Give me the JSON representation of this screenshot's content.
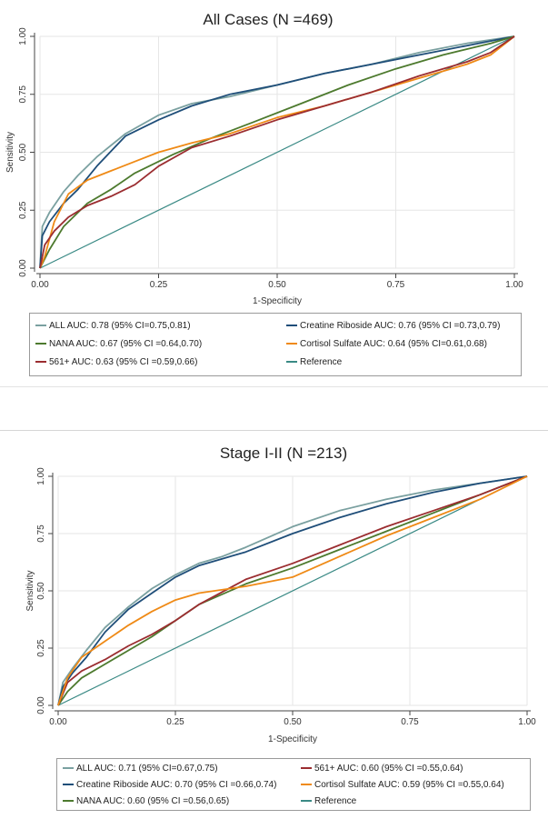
{
  "chart_data": [
    {
      "type": "line",
      "title": "All Cases (N =469)",
      "xlabel": "1-Specificity",
      "ylabel": "Sensitivity",
      "xlim": [
        0,
        1
      ],
      "ylim": [
        0,
        1
      ],
      "xticks": [
        "0.00",
        "0.25",
        "0.50",
        "0.75",
        "1.00"
      ],
      "yticks": [
        "0.00",
        "0.25",
        "0.50",
        "0.75",
        "1.00"
      ],
      "grid": true,
      "legend_position": "bottom",
      "series": [
        {
          "name": "ALL AUC: 0.78 (95% CI=0.75,0.81)",
          "color": "#7aa0a0",
          "x": [
            0,
            0.005,
            0.02,
            0.05,
            0.08,
            0.12,
            0.18,
            0.25,
            0.32,
            0.4,
            0.5,
            0.6,
            0.7,
            0.8,
            0.9,
            1.0
          ],
          "y": [
            0,
            0.18,
            0.24,
            0.33,
            0.4,
            0.48,
            0.58,
            0.66,
            0.71,
            0.74,
            0.79,
            0.84,
            0.88,
            0.93,
            0.97,
            1.0
          ]
        },
        {
          "name": "Creatine Riboside AUC: 0.76 (95% CI =0.73,0.79)",
          "color": "#1f4e79",
          "x": [
            0,
            0.005,
            0.02,
            0.05,
            0.08,
            0.12,
            0.18,
            0.25,
            0.32,
            0.4,
            0.5,
            0.6,
            0.7,
            0.8,
            0.9,
            1.0
          ],
          "y": [
            0,
            0.14,
            0.2,
            0.28,
            0.34,
            0.44,
            0.57,
            0.64,
            0.7,
            0.75,
            0.79,
            0.84,
            0.88,
            0.92,
            0.96,
            1.0
          ]
        },
        {
          "name": "NANA AUC: 0.67 (95% CI =0.64,0.70)",
          "color": "#4d7a2e",
          "x": [
            0,
            0.02,
            0.05,
            0.1,
            0.15,
            0.2,
            0.28,
            0.36,
            0.45,
            0.55,
            0.65,
            0.75,
            0.85,
            0.95,
            1.0
          ],
          "y": [
            0,
            0.08,
            0.18,
            0.28,
            0.34,
            0.41,
            0.49,
            0.56,
            0.63,
            0.71,
            0.79,
            0.86,
            0.92,
            0.97,
            1.0
          ]
        },
        {
          "name": "Cortisol Sulfate AUC: 0.64 (95% CI=0.61,0.68)",
          "color": "#ef8a16",
          "x": [
            0,
            0.01,
            0.03,
            0.06,
            0.1,
            0.15,
            0.2,
            0.25,
            0.32,
            0.4,
            0.5,
            0.6,
            0.7,
            0.8,
            0.9,
            0.95,
            1.0
          ],
          "y": [
            0,
            0.05,
            0.2,
            0.32,
            0.38,
            0.42,
            0.46,
            0.5,
            0.54,
            0.58,
            0.65,
            0.7,
            0.76,
            0.82,
            0.88,
            0.92,
            1.0
          ]
        },
        {
          "name": "561+ AUC: 0.63 (95% CI =0.59,0.66)",
          "color": "#9b2d30",
          "x": [
            0,
            0.01,
            0.03,
            0.06,
            0.1,
            0.15,
            0.2,
            0.25,
            0.32,
            0.4,
            0.5,
            0.6,
            0.7,
            0.8,
            0.9,
            0.95,
            1.0
          ],
          "y": [
            0,
            0.1,
            0.16,
            0.22,
            0.27,
            0.31,
            0.36,
            0.44,
            0.52,
            0.57,
            0.64,
            0.7,
            0.76,
            0.83,
            0.89,
            0.93,
            1.0
          ]
        },
        {
          "name": "Reference",
          "color": "#3a8a85",
          "x": [
            0,
            1
          ],
          "y": [
            0,
            1
          ]
        }
      ]
    },
    {
      "type": "line",
      "title": "Stage I-II (N =213)",
      "xlabel": "1-Specificity",
      "ylabel": "Sensitivity",
      "xlim": [
        0,
        1
      ],
      "ylim": [
        0,
        1
      ],
      "xticks": [
        "0.00",
        "0.25",
        "0.50",
        "0.75",
        "1.00"
      ],
      "yticks": [
        "0.00",
        "0.25",
        "0.50",
        "0.75",
        "1.00"
      ],
      "grid": true,
      "legend_position": "bottom",
      "series": [
        {
          "name": "ALL AUC: 0.71 (95% CI=0.67,0.75)",
          "color": "#7aa0a0",
          "x": [
            0,
            0.01,
            0.03,
            0.06,
            0.1,
            0.15,
            0.2,
            0.25,
            0.3,
            0.35,
            0.4,
            0.5,
            0.6,
            0.7,
            0.8,
            0.9,
            1.0
          ],
          "y": [
            0,
            0.1,
            0.16,
            0.24,
            0.34,
            0.43,
            0.51,
            0.57,
            0.62,
            0.65,
            0.69,
            0.78,
            0.85,
            0.9,
            0.94,
            0.97,
            1.0
          ]
        },
        {
          "name": "Creatine Riboside AUC: 0.70 (95% CI =0.66,0.74)",
          "color": "#1f4e79",
          "x": [
            0,
            0.01,
            0.03,
            0.06,
            0.1,
            0.15,
            0.2,
            0.25,
            0.3,
            0.35,
            0.4,
            0.5,
            0.6,
            0.7,
            0.8,
            0.9,
            1.0
          ],
          "y": [
            0,
            0.08,
            0.14,
            0.21,
            0.32,
            0.42,
            0.49,
            0.56,
            0.61,
            0.64,
            0.67,
            0.75,
            0.82,
            0.88,
            0.93,
            0.97,
            1.0
          ]
        },
        {
          "name": "NANA AUC: 0.60 (95% CI =0.56,0.65)",
          "color": "#4d7a2e",
          "x": [
            0,
            0.02,
            0.05,
            0.1,
            0.15,
            0.2,
            0.25,
            0.3,
            0.4,
            0.5,
            0.6,
            0.7,
            0.8,
            0.9,
            1.0
          ],
          "y": [
            0,
            0.06,
            0.12,
            0.18,
            0.24,
            0.3,
            0.37,
            0.44,
            0.53,
            0.6,
            0.68,
            0.76,
            0.84,
            0.92,
            1.0
          ]
        },
        {
          "name": "561+ AUC: 0.60 (95% CI =0.55,0.64)",
          "color": "#9b2d30",
          "x": [
            0,
            0.02,
            0.05,
            0.1,
            0.15,
            0.2,
            0.25,
            0.3,
            0.4,
            0.5,
            0.6,
            0.7,
            0.8,
            0.9,
            1.0
          ],
          "y": [
            0,
            0.1,
            0.15,
            0.2,
            0.26,
            0.31,
            0.37,
            0.44,
            0.55,
            0.62,
            0.7,
            0.78,
            0.85,
            0.92,
            1.0
          ]
        },
        {
          "name": "Cortisol Sulfate AUC: 0.59 (95% CI =0.55,0.64)",
          "color": "#ef8a16",
          "x": [
            0,
            0.02,
            0.05,
            0.1,
            0.15,
            0.2,
            0.25,
            0.3,
            0.4,
            0.5,
            0.6,
            0.7,
            0.8,
            0.9,
            1.0
          ],
          "y": [
            0,
            0.12,
            0.21,
            0.28,
            0.35,
            0.41,
            0.46,
            0.49,
            0.52,
            0.56,
            0.65,
            0.74,
            0.82,
            0.9,
            1.0
          ]
        },
        {
          "name": "Reference",
          "color": "#3a8a85",
          "x": [
            0,
            1
          ],
          "y": [
            0,
            1
          ]
        }
      ]
    }
  ]
}
